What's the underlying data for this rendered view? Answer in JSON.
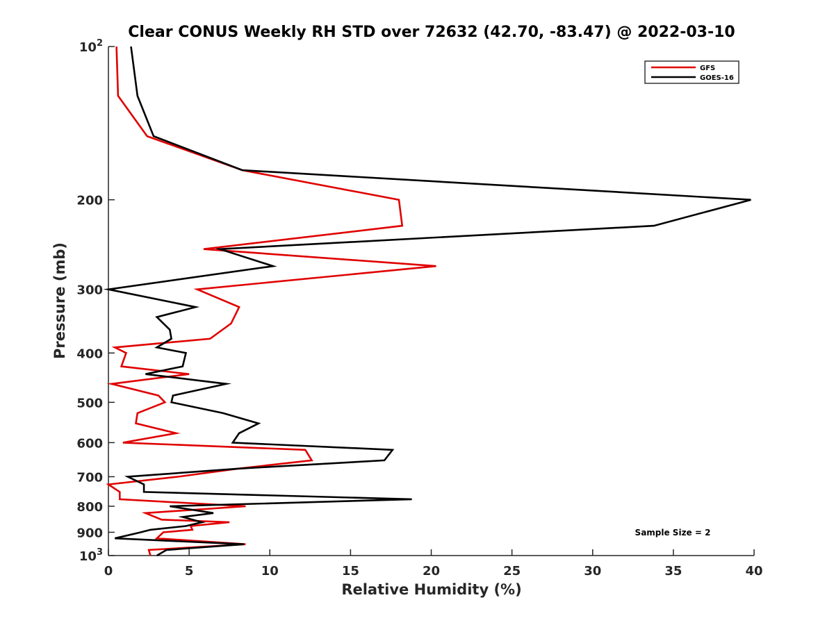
{
  "chart_data": {
    "type": "line",
    "title": "Clear CONUS Weekly RH STD over 72632 (42.70, -83.47) @ 2022-03-10",
    "xlabel": "Relative Humidity (%)",
    "ylabel": "Pressure (mb)",
    "xlim": [
      0,
      40
    ],
    "ylim": [
      100,
      1000
    ],
    "y_scale": "log",
    "y_reversed": true,
    "grid": false,
    "legend_position": "top-right",
    "x_ticks": [
      "0",
      "5",
      "10",
      "15",
      "20",
      "25",
      "30",
      "35",
      "40"
    ],
    "y_ticks": [
      {
        "value": 100,
        "base": "10",
        "exp": "2"
      },
      {
        "value": 200,
        "label": "200"
      },
      {
        "value": 300,
        "label": "300"
      },
      {
        "value": 400,
        "label": "400"
      },
      {
        "value": 500,
        "label": "500"
      },
      {
        "value": 600,
        "label": "600"
      },
      {
        "value": 700,
        "label": "700"
      },
      {
        "value": 800,
        "label": "800"
      },
      {
        "value": 900,
        "label": "900"
      },
      {
        "value": 1000,
        "base": "10",
        "exp": "3"
      }
    ],
    "annotation": "Sample Size = 2",
    "series": [
      {
        "name": "GFS",
        "color": "#e00000",
        "points": [
          [
            0.5,
            100
          ],
          [
            0.6,
            125
          ],
          [
            2.4,
            150
          ],
          [
            8.3,
            175
          ],
          [
            18.0,
            200
          ],
          [
            18.2,
            225
          ],
          [
            5.9,
            250
          ],
          [
            20.3,
            270
          ],
          [
            5.5,
            300
          ],
          [
            8.1,
            325
          ],
          [
            7.6,
            350
          ],
          [
            6.3,
            375
          ],
          [
            0.4,
            390
          ],
          [
            1.1,
            400
          ],
          [
            0.8,
            425
          ],
          [
            5.0,
            440
          ],
          [
            0.2,
            460
          ],
          [
            3.1,
            485
          ],
          [
            3.5,
            500
          ],
          [
            1.8,
            525
          ],
          [
            1.7,
            550
          ],
          [
            4.2,
            575
          ],
          [
            0.9,
            600
          ],
          [
            12.2,
            620
          ],
          [
            12.6,
            650
          ],
          [
            8.0,
            675
          ],
          [
            4.3,
            700
          ],
          [
            0.0,
            725
          ],
          [
            0.7,
            750
          ],
          [
            0.7,
            775
          ],
          [
            8.5,
            800
          ],
          [
            2.3,
            825
          ],
          [
            3.3,
            850
          ],
          [
            7.5,
            860
          ],
          [
            5.1,
            875
          ],
          [
            5.2,
            890
          ],
          [
            3.4,
            900
          ],
          [
            3.0,
            925
          ],
          [
            8.5,
            950
          ],
          [
            2.5,
            975
          ],
          [
            2.6,
            1000
          ]
        ]
      },
      {
        "name": "GOES-16",
        "color": "#000000",
        "points": [
          [
            1.4,
            100
          ],
          [
            1.8,
            125
          ],
          [
            2.8,
            150
          ],
          [
            8.3,
            175
          ],
          [
            39.8,
            200
          ],
          [
            33.8,
            225
          ],
          [
            6.9,
            250
          ],
          [
            10.2,
            270
          ],
          [
            0.0,
            300
          ],
          [
            5.4,
            325
          ],
          [
            3.0,
            340
          ],
          [
            3.8,
            360
          ],
          [
            3.9,
            375
          ],
          [
            3.0,
            390
          ],
          [
            4.8,
            400
          ],
          [
            4.6,
            425
          ],
          [
            2.3,
            440
          ],
          [
            7.3,
            460
          ],
          [
            4.0,
            485
          ],
          [
            3.9,
            500
          ],
          [
            7.1,
            525
          ],
          [
            9.3,
            550
          ],
          [
            8.1,
            575
          ],
          [
            7.7,
            600
          ],
          [
            17.6,
            620
          ],
          [
            17.1,
            650
          ],
          [
            8.0,
            675
          ],
          [
            1.2,
            700
          ],
          [
            2.2,
            725
          ],
          [
            2.2,
            750
          ],
          [
            18.8,
            775
          ],
          [
            3.8,
            800
          ],
          [
            6.5,
            825
          ],
          [
            4.6,
            840
          ],
          [
            5.8,
            860
          ],
          [
            4.8,
            875
          ],
          [
            2.6,
            890
          ],
          [
            2.0,
            900
          ],
          [
            0.4,
            925
          ],
          [
            8.4,
            950
          ],
          [
            3.6,
            975
          ],
          [
            3.0,
            1000
          ]
        ]
      }
    ]
  }
}
